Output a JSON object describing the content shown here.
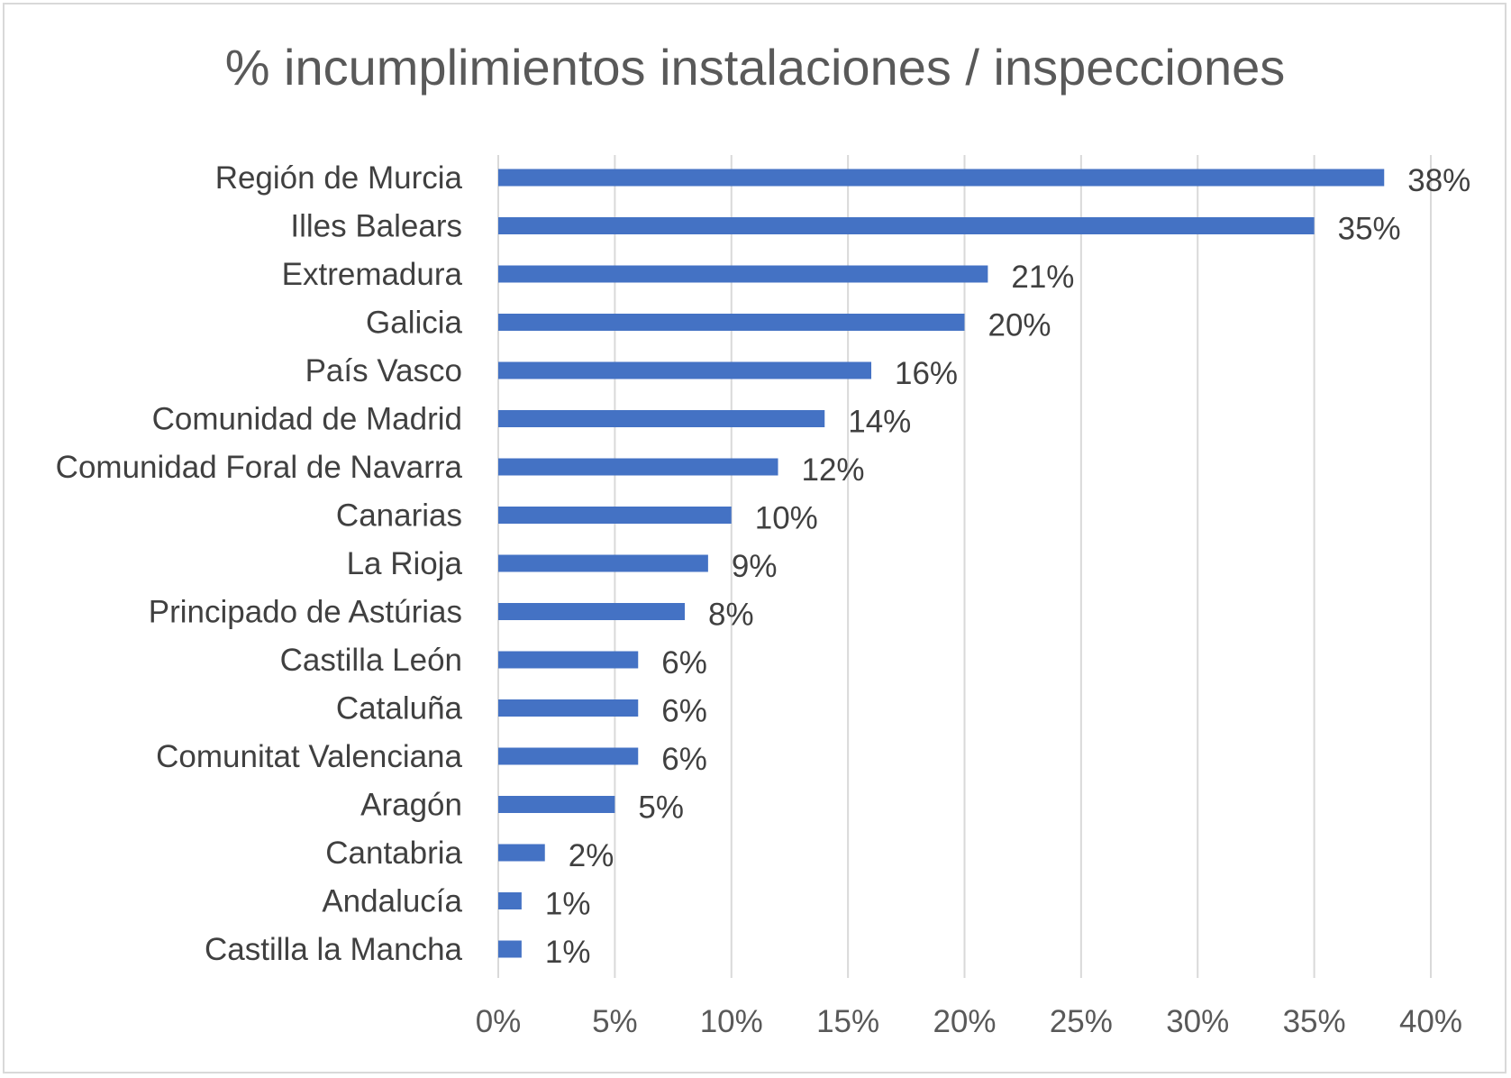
{
  "chart_data": {
    "type": "bar",
    "orientation": "horizontal",
    "title": "% incumplimientos instalaciones / inspecciones",
    "xlabel": "",
    "ylabel": "",
    "categories": [
      "Región de Murcia",
      "Illes Balears",
      "Extremadura",
      "Galicia",
      "País Vasco",
      "Comunidad de Madrid",
      "Comunidad Foral de Navarra",
      "Canarias",
      "La Rioja",
      "Principado de Astúrias",
      "Castilla León",
      "Cataluña",
      "Comunitat Valenciana",
      "Aragón",
      "Cantabria",
      "Andalucía",
      "Castilla la Mancha"
    ],
    "values": [
      38,
      35,
      21,
      20,
      16,
      14,
      12,
      10,
      9,
      8,
      6,
      6,
      6,
      5,
      2,
      1,
      1
    ],
    "data_labels": [
      "38%",
      "35%",
      "21%",
      "20%",
      "16%",
      "14%",
      "12%",
      "10%",
      "9%",
      "8%",
      "6%",
      "6%",
      "6%",
      "5%",
      "2%",
      "1%",
      "1%"
    ],
    "xlim": [
      0,
      40
    ],
    "x_ticks": [
      0,
      5,
      10,
      15,
      20,
      25,
      30,
      35,
      40
    ],
    "x_tick_labels": [
      "0%",
      "5%",
      "10%",
      "15%",
      "20%",
      "25%",
      "30%",
      "35%",
      "40%"
    ],
    "grid": "vertical",
    "legend": "none",
    "bar_color": "#4472C4",
    "grid_color": "#d9d9d9"
  }
}
